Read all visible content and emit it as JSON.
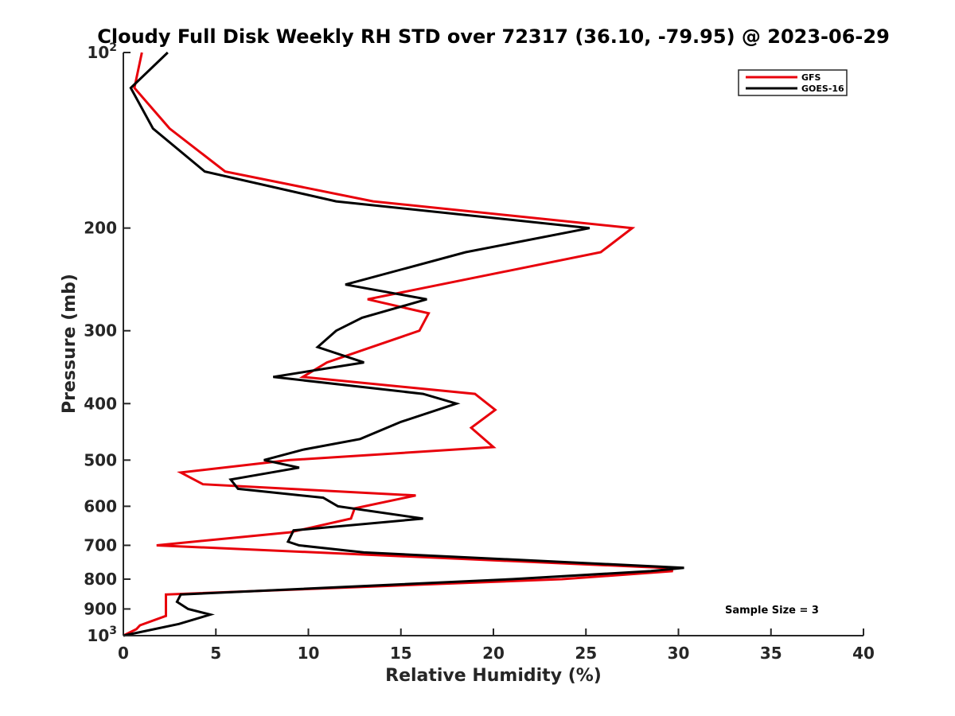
{
  "chart_data": {
    "type": "line",
    "title": "Cloudy Full Disk Weekly RH STD over 72317 (36.10, -79.95) @ 2023-06-29",
    "xlabel": "Relative Humidity (%)",
    "ylabel": "Pressure (mb)",
    "xlim": [
      0,
      40
    ],
    "ylim": [
      100,
      1000
    ],
    "y_scale": "log",
    "y_reversed": true,
    "x_ticks": [
      0,
      5,
      10,
      15,
      20,
      25,
      30,
      35,
      40
    ],
    "x_tick_labels": [
      "0",
      "5",
      "10",
      "15",
      "20",
      "25",
      "30",
      "35",
      "40"
    ],
    "y_ticks": [
      100,
      200,
      300,
      400,
      500,
      600,
      700,
      800,
      900,
      1000
    ],
    "y_tick_labels": [
      "10^2",
      "200",
      "300",
      "400",
      "500",
      "600",
      "700",
      "800",
      "900",
      "10^3"
    ],
    "y_tick_base": "10",
    "grid": false,
    "legend_position": "top-right",
    "annotation": "Sample Size = 3",
    "series": [
      {
        "name": "GFS",
        "color": "#e8000b",
        "pressure": [
          100,
          115,
          135,
          160,
          180,
          200,
          220,
          265,
          280,
          300,
          325,
          340,
          360,
          385,
          410,
          440,
          475,
          500,
          525,
          550,
          575,
          605,
          630,
          665,
          700,
          765,
          775,
          800,
          850,
          875,
          925,
          960,
          975,
          1000
        ],
        "values": [
          1.0,
          0.6,
          2.5,
          5.5,
          13.5,
          27.5,
          25.8,
          13.2,
          16.5,
          16.0,
          12.8,
          11.0,
          9.7,
          19.0,
          20.1,
          18.8,
          20.0,
          9.0,
          3.1,
          4.3,
          15.8,
          12.5,
          12.3,
          9.0,
          1.8,
          29.2,
          29.7,
          23.7,
          2.3,
          2.3,
          2.3,
          0.9,
          0.7,
          0.0
        ]
      },
      {
        "name": "GOES-16",
        "color": "#000000",
        "pressure": [
          100,
          115,
          135,
          160,
          180,
          200,
          220,
          250,
          265,
          285,
          300,
          320,
          340,
          360,
          385,
          400,
          430,
          460,
          480,
          500,
          515,
          540,
          560,
          580,
          600,
          630,
          660,
          690,
          700,
          720,
          765,
          775,
          800,
          850,
          875,
          900,
          920,
          955,
          1000
        ],
        "values": [
          2.4,
          0.4,
          1.6,
          4.4,
          11.5,
          25.2,
          18.5,
          12.0,
          16.4,
          12.9,
          11.5,
          10.5,
          13.0,
          8.1,
          16.2,
          18.0,
          15.0,
          12.8,
          9.7,
          7.6,
          9.5,
          5.8,
          6.2,
          10.8,
          11.6,
          16.2,
          9.2,
          8.9,
          9.5,
          13.0,
          30.3,
          28.5,
          21.0,
          3.1,
          2.9,
          3.5,
          4.7,
          3.0,
          0.0
        ]
      }
    ]
  }
}
